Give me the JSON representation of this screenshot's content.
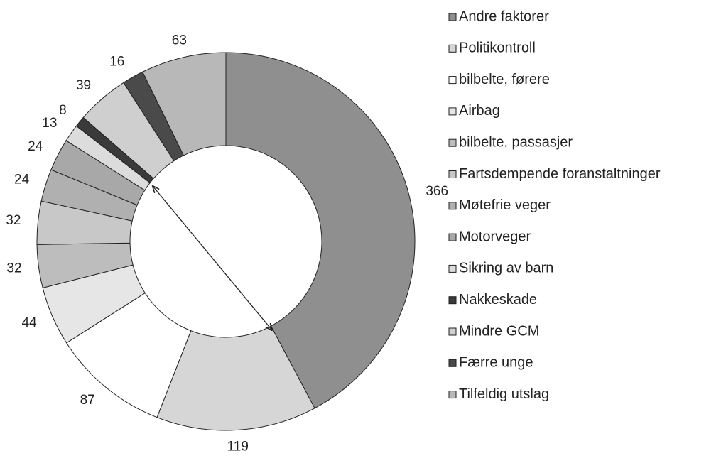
{
  "chart_data": {
    "type": "donut",
    "categories": [
      "Andre faktorer",
      "Politikontroll",
      "bilbelte, førere",
      "Airbag",
      "bilbelte, passasjer",
      "Fartsdempende foranstaltninger",
      "Møtefrie veger",
      "Motorveger",
      "Sikring av barn",
      "Nakkeskade",
      "Mindre GCM",
      "Færre unge",
      "Tilfeldig utslag"
    ],
    "values": [
      366,
      119,
      87,
      44,
      32,
      32,
      24,
      24,
      13,
      8,
      39,
      16,
      63
    ],
    "colors": [
      "#8f8f8f",
      "#d6d6d6",
      "#ffffff",
      "#e6e6e6",
      "#bdbdbd",
      "#c8c8c8",
      "#b0b0b0",
      "#a8a8a8",
      "#dcdcdc",
      "#3a3a3a",
      "#cfcfcf",
      "#4a4a4a",
      "#b8b8b8"
    ]
  }
}
